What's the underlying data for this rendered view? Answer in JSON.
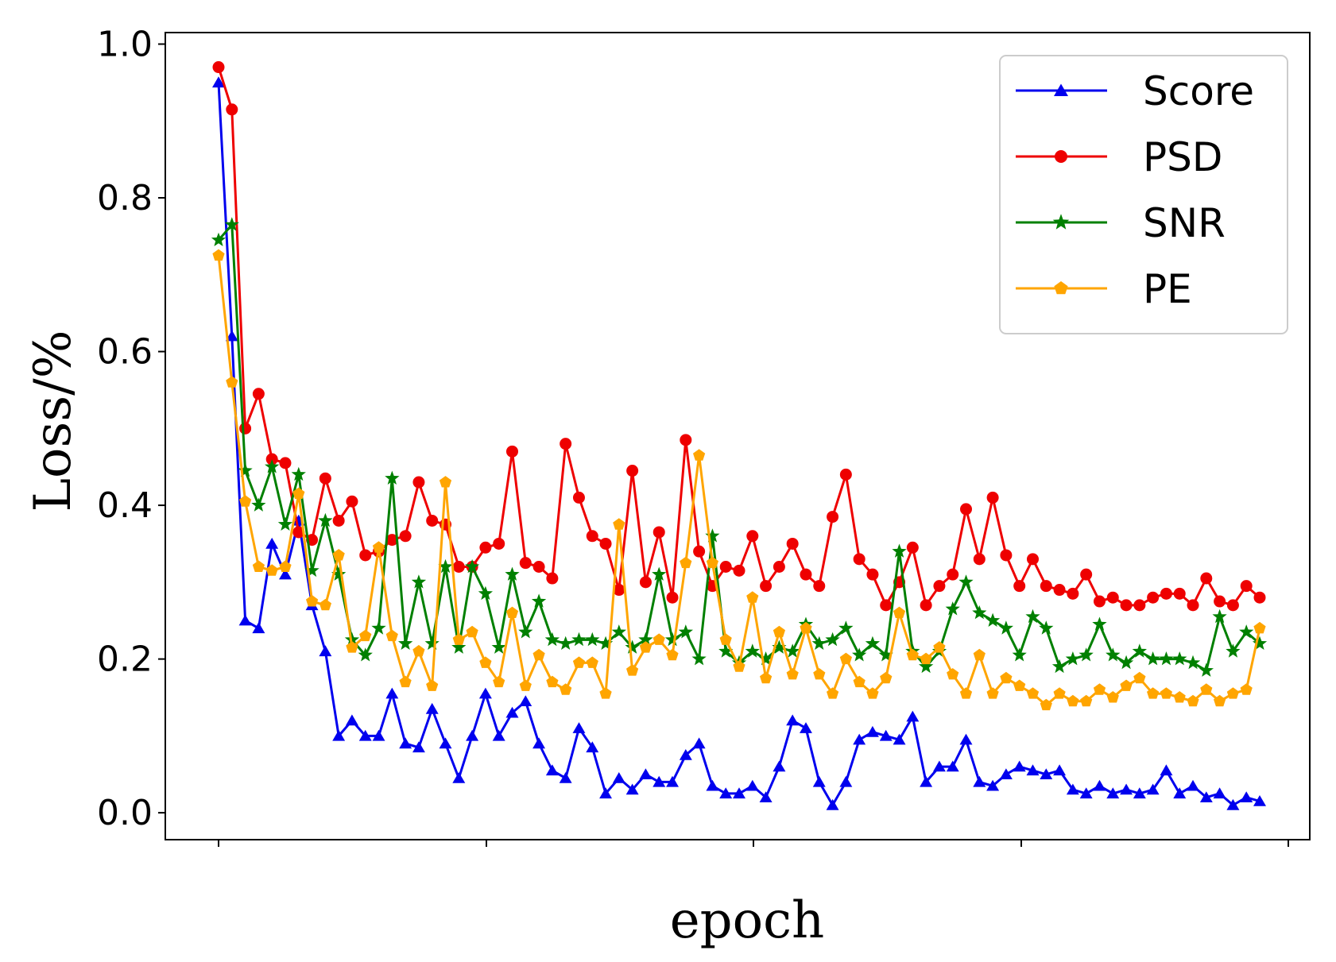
{
  "chart_data": {
    "type": "line",
    "xlabel": "epoch",
    "ylabel": "Loss/%",
    "ylim": [
      -0.035,
      1.015
    ],
    "y_ticks": [
      "0.0",
      "0.2",
      "0.4",
      "0.6",
      "0.8",
      "1.0"
    ],
    "x_tick_labels": [],
    "grid": false,
    "legend_position": "top-right",
    "series": [
      {
        "name": "Score",
        "color": "#0000ee",
        "marker": "triangle",
        "values": [
          0.95,
          0.62,
          0.25,
          0.24,
          0.35,
          0.31,
          0.38,
          0.27,
          0.21,
          0.1,
          0.12,
          0.1,
          0.1,
          0.155,
          0.09,
          0.085,
          0.135,
          0.09,
          0.045,
          0.1,
          0.155,
          0.1,
          0.13,
          0.145,
          0.09,
          0.055,
          0.045,
          0.11,
          0.085,
          0.025,
          0.045,
          0.03,
          0.05,
          0.04,
          0.04,
          0.075,
          0.09,
          0.035,
          0.025,
          0.025,
          0.035,
          0.02,
          0.06,
          0.12,
          0.11,
          0.04,
          0.01,
          0.04,
          0.095,
          0.105,
          0.1,
          0.095,
          0.125,
          0.04,
          0.06,
          0.06,
          0.095,
          0.04,
          0.035,
          0.05,
          0.06,
          0.055,
          0.05,
          0.055,
          0.03,
          0.025,
          0.035,
          0.025,
          0.03,
          0.025,
          0.03,
          0.055,
          0.025,
          0.035,
          0.02,
          0.025,
          0.01,
          0.02,
          0.015
        ]
      },
      {
        "name": "PSD",
        "color": "#ee0000",
        "marker": "circle",
        "values": [
          0.97,
          0.915,
          0.5,
          0.545,
          0.46,
          0.455,
          0.365,
          0.355,
          0.435,
          0.38,
          0.405,
          0.335,
          0.34,
          0.355,
          0.36,
          0.43,
          0.38,
          0.375,
          0.32,
          0.32,
          0.345,
          0.35,
          0.47,
          0.325,
          0.32,
          0.305,
          0.48,
          0.41,
          0.36,
          0.35,
          0.29,
          0.445,
          0.3,
          0.365,
          0.28,
          0.485,
          0.34,
          0.295,
          0.32,
          0.315,
          0.36,
          0.295,
          0.32,
          0.35,
          0.31,
          0.295,
          0.385,
          0.44,
          0.33,
          0.31,
          0.27,
          0.3,
          0.345,
          0.27,
          0.295,
          0.31,
          0.395,
          0.33,
          0.41,
          0.335,
          0.295,
          0.33,
          0.295,
          0.29,
          0.285,
          0.31,
          0.275,
          0.28,
          0.27,
          0.27,
          0.28,
          0.285,
          0.285,
          0.27,
          0.305,
          0.275,
          0.27,
          0.295,
          0.28
        ]
      },
      {
        "name": "SNR",
        "color": "#008000",
        "marker": "star",
        "values": [
          0.745,
          0.765,
          0.445,
          0.4,
          0.45,
          0.375,
          0.44,
          0.315,
          0.38,
          0.31,
          0.225,
          0.205,
          0.24,
          0.435,
          0.22,
          0.3,
          0.22,
          0.32,
          0.215,
          0.32,
          0.285,
          0.215,
          0.31,
          0.235,
          0.275,
          0.225,
          0.22,
          0.225,
          0.225,
          0.22,
          0.235,
          0.215,
          0.225,
          0.31,
          0.225,
          0.235,
          0.2,
          0.36,
          0.21,
          0.195,
          0.21,
          0.2,
          0.215,
          0.21,
          0.245,
          0.22,
          0.225,
          0.24,
          0.205,
          0.22,
          0.205,
          0.34,
          0.21,
          0.19,
          0.21,
          0.265,
          0.3,
          0.26,
          0.25,
          0.24,
          0.205,
          0.255,
          0.24,
          0.19,
          0.2,
          0.205,
          0.245,
          0.205,
          0.195,
          0.21,
          0.2,
          0.2,
          0.2,
          0.195,
          0.185,
          0.255,
          0.21,
          0.235,
          0.22
        ]
      },
      {
        "name": "PE",
        "color": "#ffa500",
        "marker": "pentagon",
        "values": [
          0.725,
          0.56,
          0.405,
          0.32,
          0.315,
          0.32,
          0.415,
          0.275,
          0.27,
          0.335,
          0.215,
          0.23,
          0.345,
          0.23,
          0.17,
          0.21,
          0.165,
          0.43,
          0.225,
          0.235,
          0.195,
          0.17,
          0.26,
          0.165,
          0.205,
          0.17,
          0.16,
          0.195,
          0.195,
          0.155,
          0.375,
          0.185,
          0.215,
          0.225,
          0.205,
          0.325,
          0.465,
          0.325,
          0.225,
          0.19,
          0.28,
          0.175,
          0.235,
          0.18,
          0.24,
          0.18,
          0.155,
          0.2,
          0.17,
          0.155,
          0.175,
          0.26,
          0.205,
          0.2,
          0.215,
          0.18,
          0.155,
          0.205,
          0.155,
          0.175,
          0.165,
          0.155,
          0.14,
          0.155,
          0.145,
          0.145,
          0.16,
          0.15,
          0.165,
          0.175,
          0.155,
          0.155,
          0.15,
          0.145,
          0.16,
          0.145,
          0.155,
          0.16,
          0.24
        ]
      }
    ]
  }
}
